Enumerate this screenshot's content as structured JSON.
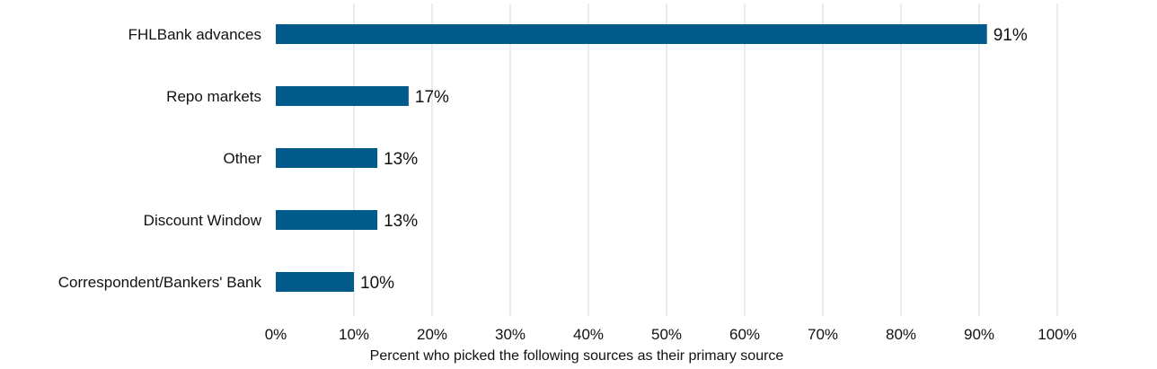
{
  "chart_data": {
    "type": "bar",
    "orientation": "horizontal",
    "categories": [
      "FHLBank advances",
      "Repo markets",
      "Other",
      "Discount Window",
      "Correspondent/Bankers' Bank"
    ],
    "values": [
      91,
      17,
      13,
      13,
      10
    ],
    "value_labels": [
      "91%",
      "17%",
      "13%",
      "13%",
      "10%"
    ],
    "xlabel": "Percent who picked the following sources as their primary source",
    "ylabel": "",
    "title": "",
    "xlim": [
      0,
      100
    ],
    "xticks": [
      0,
      10,
      20,
      30,
      40,
      50,
      60,
      70,
      80,
      90,
      100
    ],
    "xtick_labels": [
      "0%",
      "10%",
      "20%",
      "30%",
      "40%",
      "50%",
      "60%",
      "70%",
      "80%",
      "90%",
      "100%"
    ],
    "grid": "vertical",
    "legend": "none",
    "bar_color": "#005a8c",
    "grid_color": "#d9d9d9"
  }
}
